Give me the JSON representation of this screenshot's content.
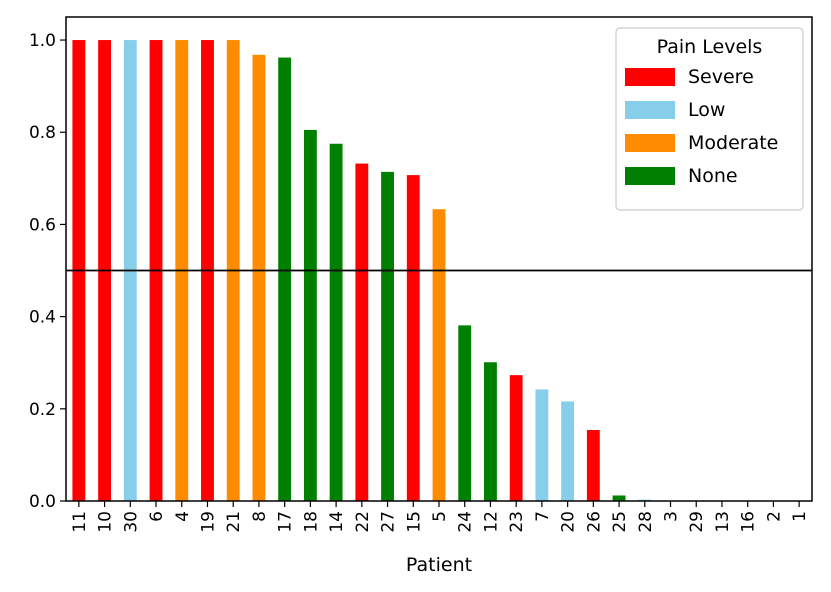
{
  "chart_data": {
    "type": "bar",
    "title": "",
    "xlabel": "Patient",
    "ylabel": "",
    "ylim": [
      0,
      1.05
    ],
    "yticks": [
      "0.0",
      "0.2",
      "0.4",
      "0.6",
      "0.8",
      "1.0"
    ],
    "reference_line": 0.5,
    "categories": [
      "11",
      "10",
      "30",
      "6",
      "4",
      "19",
      "21",
      "8",
      "17",
      "18",
      "14",
      "22",
      "27",
      "15",
      "5",
      "24",
      "12",
      "23",
      "7",
      "20",
      "26",
      "25",
      "28",
      "3",
      "29",
      "13",
      "16",
      "2",
      "1"
    ],
    "values": [
      1.0,
      1.0,
      1.0,
      1.0,
      1.0,
      1.0,
      1.0,
      0.968,
      0.962,
      0.805,
      0.775,
      0.732,
      0.714,
      0.707,
      0.633,
      0.381,
      0.301,
      0.273,
      0.242,
      0.216,
      0.154,
      0.012,
      0.003,
      0.0,
      0.0,
      0.0,
      0.0,
      0.0,
      0.0
    ],
    "pain_levels": [
      "Severe",
      "Severe",
      "Low",
      "Severe",
      "Moderate",
      "Severe",
      "Moderate",
      "Moderate",
      "None",
      "None",
      "None",
      "Severe",
      "None",
      "Severe",
      "Moderate",
      "None",
      "None",
      "Severe",
      "Low",
      "Low",
      "Severe",
      "None",
      "Low",
      "Severe",
      "Severe",
      "Low",
      "Severe",
      "Moderate",
      "Severe"
    ],
    "legend": {
      "title": "Pain Levels",
      "placement": "top-right",
      "entries": [
        {
          "name": "Severe",
          "color": "#ff0000"
        },
        {
          "name": "Low",
          "color": "#87ceeb"
        },
        {
          "name": "Moderate",
          "color": "#ff8c00"
        },
        {
          "name": "None",
          "color": "#008000"
        }
      ]
    },
    "grid": false
  }
}
